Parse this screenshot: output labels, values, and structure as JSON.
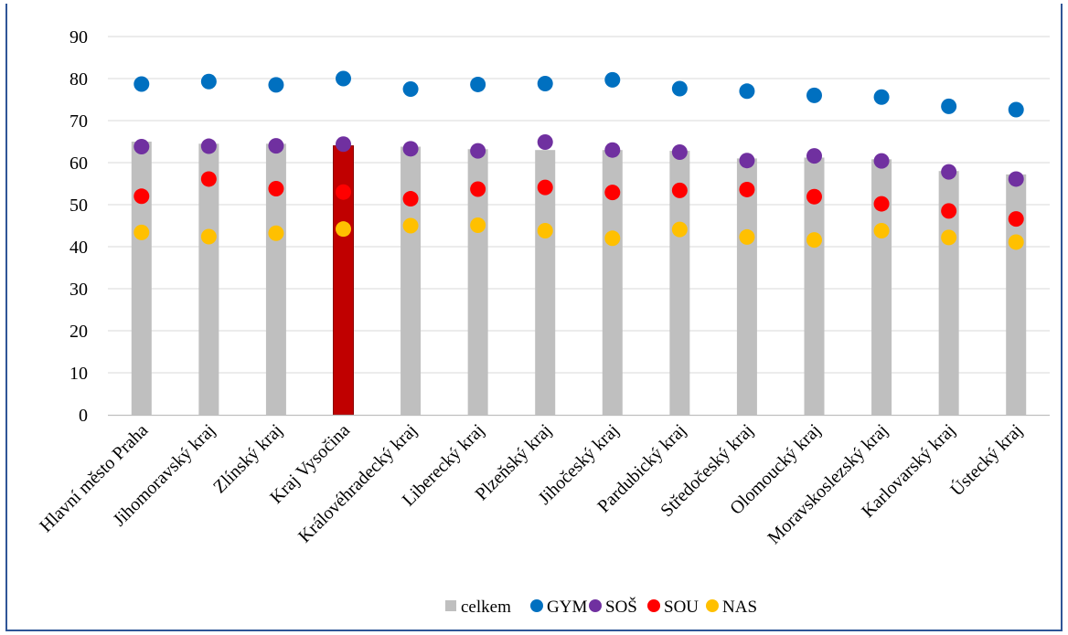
{
  "chart_data": {
    "type": "bar",
    "title": "",
    "xlabel": "",
    "ylabel": "",
    "ylim": [
      0,
      90
    ],
    "yticks": [
      0,
      10,
      20,
      30,
      40,
      50,
      60,
      70,
      80,
      90
    ],
    "grid": true,
    "legend_position": "bottom",
    "highlight_category": "Kraj Vysočina",
    "categories": [
      "Hlavní město Praha",
      "Jihomoravský kraj",
      "Zlínský kraj",
      "Kraj Vysočina",
      "Královéhradecký kraj",
      "Liberecký kraj",
      "Plzeňský kraj",
      "Jihočeský kraj",
      "Pardubický kraj",
      "Středočeský kraj",
      "Olomoucký kraj",
      "Moravskoslezský kraj",
      "Karlovarský kraj",
      "Ústecký kraj"
    ],
    "series": [
      {
        "name": "celkem",
        "kind": "bar",
        "color": "#bfbfbf",
        "highlight_color": "#c00000",
        "values": [
          65,
          64.5,
          64.5,
          64,
          63.8,
          63.2,
          63,
          63,
          62.8,
          61,
          61.2,
          60.8,
          58,
          57.2
        ]
      },
      {
        "name": "GYM",
        "kind": "marker",
        "color": "#0070c0",
        "values": [
          78.7,
          79.3,
          78.5,
          80,
          77.5,
          78.6,
          78.8,
          79.7,
          77.6,
          77,
          76,
          75.6,
          73.4,
          72.6
        ]
      },
      {
        "name": "SOŠ",
        "kind": "marker",
        "color": "#7030a0",
        "values": [
          63.8,
          63.9,
          64,
          64.4,
          63.3,
          62.8,
          64.9,
          63,
          62.5,
          60.5,
          61.6,
          60.4,
          57.8,
          56.1
        ]
      },
      {
        "name": "SOU",
        "kind": "marker",
        "color": "#ff0000",
        "values": [
          52,
          56.1,
          53.8,
          53,
          51.4,
          53.7,
          54.1,
          52.9,
          53.4,
          53.6,
          51.9,
          50.2,
          48.5,
          46.6
        ]
      },
      {
        "name": "NAS",
        "kind": "marker",
        "color": "#ffc000",
        "values": [
          43.4,
          42.4,
          43.2,
          44.2,
          45,
          45.1,
          43.8,
          42,
          44.1,
          42.3,
          41.6,
          43.8,
          42.2,
          41.1
        ]
      }
    ]
  }
}
